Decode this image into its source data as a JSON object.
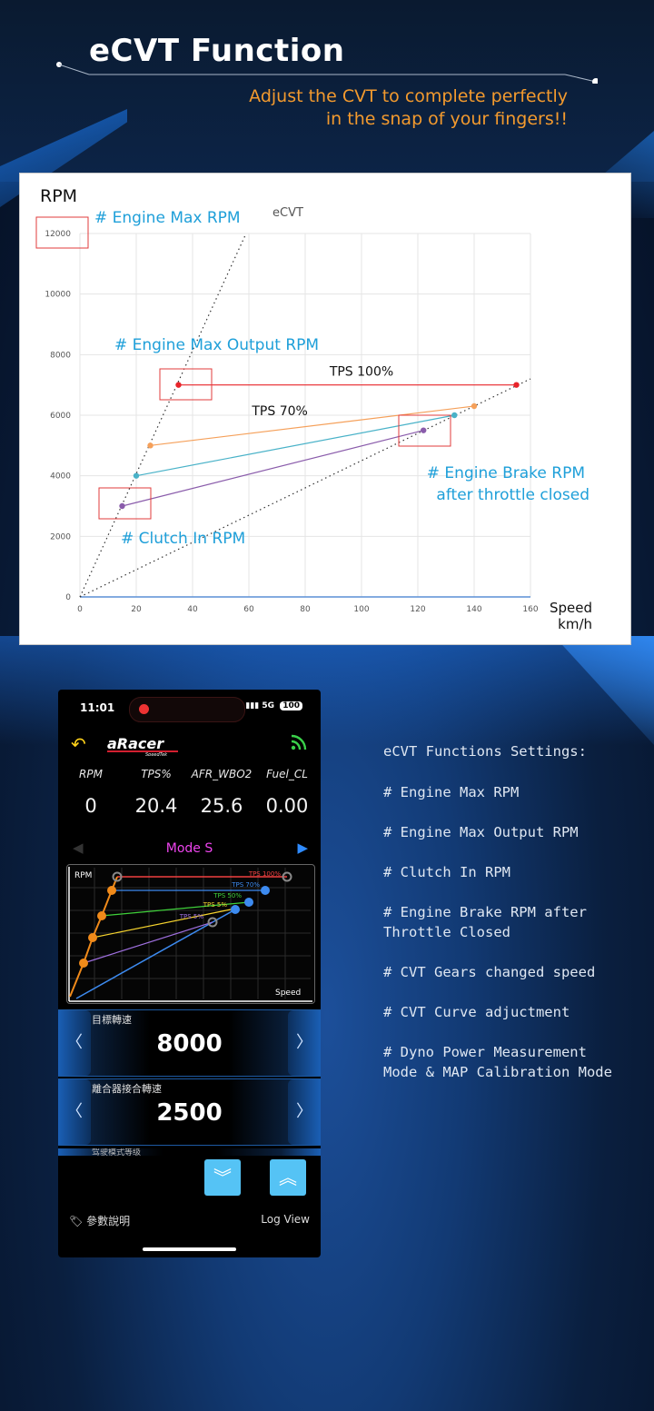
{
  "header": {
    "title": "eCVT Function",
    "subtitle_line1": "Adjust the CVT to complete perfectly",
    "subtitle_line2": "in the snap of your fingers!!"
  },
  "colors": {
    "accent_orange": "#f39a2e",
    "annotation_blue": "#1e9fd9",
    "highlight_red": "#e23b3b",
    "series_red": "#e8242a",
    "series_orange": "#f5a05a",
    "series_teal": "#49b2c8",
    "series_purple": "#8a5cab"
  },
  "chart_data": {
    "type": "line",
    "title": "eCVT",
    "ylabel": "RPM",
    "xlabel": "Speed km/h",
    "xlabel_line1": "Speed",
    "xlabel_line2": "km/h",
    "xlim": [
      0,
      160
    ],
    "ylim": [
      0,
      12000
    ],
    "x_ticks": [
      "0",
      "20",
      "40",
      "60",
      "80",
      "100",
      "120",
      "140",
      "160"
    ],
    "y_ticks": [
      "0",
      "2000",
      "4000",
      "6000",
      "8000",
      "10000",
      "12000"
    ],
    "grid": true,
    "series": [
      {
        "name": "TPS 100%",
        "color": "#e8242a",
        "points": [
          [
            35,
            7000
          ],
          [
            155,
            7000
          ]
        ]
      },
      {
        "name": "",
        "color": "#f5a05a",
        "points": [
          [
            25,
            5000
          ],
          [
            140,
            6300
          ]
        ]
      },
      {
        "name": "",
        "color": "#49b2c8",
        "points": [
          [
            20,
            4000
          ],
          [
            133,
            6000
          ]
        ]
      },
      {
        "name": "",
        "color": "#8a5cab",
        "points": [
          [
            15,
            3000
          ],
          [
            122,
            5500
          ]
        ]
      }
    ],
    "series_labels": [
      {
        "text": "TPS 100%",
        "x": 100,
        "y": 7300
      },
      {
        "text": "TPS 70%",
        "x": 71,
        "y": 6000
      }
    ],
    "dotted_lines": [
      {
        "from": [
          0,
          0
        ],
        "to": [
          59,
          12000
        ]
      },
      {
        "from": [
          0,
          0
        ],
        "to": [
          160,
          7200
        ]
      }
    ],
    "annotations": [
      {
        "text": "# Engine Max RPM"
      },
      {
        "text": "# Engine Max Output RPM"
      },
      {
        "text": "# Clutch In RPM"
      },
      {
        "text": "# Engine Brake RPM",
        "line2": "after throttle closed"
      }
    ]
  },
  "phone": {
    "status": {
      "time": "11:01",
      "signal": "5G",
      "battery": "100"
    },
    "metrics": [
      {
        "label": "RPM",
        "value": "0"
      },
      {
        "label": "TPS%",
        "value": "20.4"
      },
      {
        "label": "AFR_WBO2",
        "value": "25.6"
      },
      {
        "label": "Fuel_CL",
        "value": "0.00"
      }
    ],
    "mode": "Mode S",
    "mini_chart": {
      "ylabel": "RPM",
      "xlabel": "Speed",
      "labels": [
        "TPS 100%",
        "TPS 70%",
        "TPS 50%",
        "TPS 5%",
        "TPS 5%"
      ]
    },
    "cards": [
      {
        "label": "目標轉速",
        "value": "8000"
      },
      {
        "label": "離合器接合轉速",
        "value": "2500"
      }
    ],
    "partial_card_label": "驾驶模式等级",
    "bottom_left": "參數說明",
    "bottom_right": "Log View"
  },
  "features": {
    "title": "eCVT Functions Settings:",
    "items": [
      "# Engine Max RPM",
      "# Engine Max Output RPM",
      "# Clutch In RPM",
      "# Engine Brake RPM after Throttle Closed",
      "# CVT Gears changed speed",
      "# CVT Curve adjuctment",
      "# Dyno Power Measurement Mode & MAP Calibration Mode"
    ]
  }
}
